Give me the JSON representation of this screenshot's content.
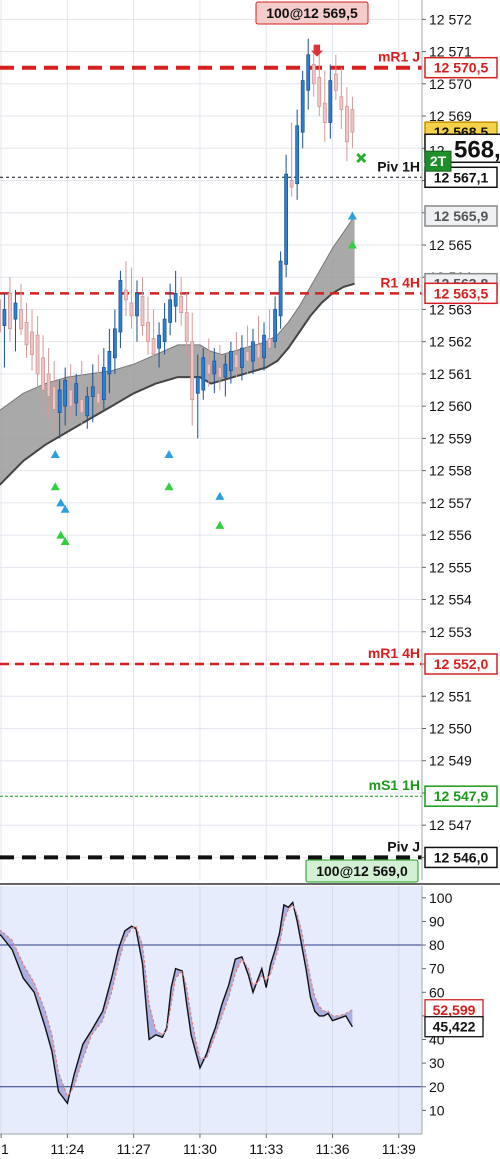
{
  "chart_data": [
    {
      "type": "candlestick",
      "title": "",
      "y_ticks": [
        "12 572",
        "12 571",
        "12 570",
        "12 569",
        "12 568",
        "12 567",
        "12 566",
        "12 565",
        "12 564",
        "12 563",
        "12 562",
        "12 561",
        "12 560",
        "12 559",
        "12 558",
        "12 557",
        "12 556",
        "12 555",
        "12 554",
        "12 553",
        "12 552",
        "12 551",
        "12 550",
        "12 549",
        "12 548",
        "12 547",
        "12 546"
      ],
      "y_tick_values": [
        12572,
        12571,
        12570,
        12569,
        12568,
        12567,
        12566,
        12565,
        12564,
        12563,
        12562,
        12561,
        12560,
        12559,
        12558,
        12557,
        12556,
        12555,
        12554,
        12553,
        12552,
        12551,
        12550,
        12549,
        12548,
        12547,
        12546
      ],
      "ylim": [
        12545.3,
        12572.6
      ],
      "x_ticks": [
        "1",
        "11:24",
        "11:27",
        "11:30",
        "11:33",
        "11:36",
        "11:39"
      ],
      "x_tick_values": [
        21,
        24,
        27,
        30,
        33,
        36,
        39
      ],
      "xlim": [
        20.95,
        40.05
      ],
      "current_price_label": "568,",
      "level_2t_label": "2T",
      "levels": [
        {
          "name": "mR1 J",
          "value": 12570.5,
          "label": "12 570,5",
          "color": "#d62020",
          "style": "thick-dash"
        },
        {
          "name": "",
          "value": 12568.5,
          "label": "12 568,5",
          "color": "#e8b020",
          "style": "none"
        },
        {
          "name": "Piv 1H",
          "value": 12567.1,
          "label": "12 567,1",
          "color": "#111111",
          "style": "dot"
        },
        {
          "name": "",
          "value": 12565.9,
          "label": "12 565,9",
          "color": "#888888",
          "style": "none"
        },
        {
          "name": "",
          "value": 12563.8,
          "label": "12 563,8",
          "color": "#888888",
          "style": "none"
        },
        {
          "name": "R1 4H",
          "value": 12563.5,
          "label": "12 563,5",
          "color": "#d62020",
          "style": "dash"
        },
        {
          "name": "mR1 4H",
          "value": 12552.0,
          "label": "12 552,0",
          "color": "#d62020",
          "style": "dash"
        },
        {
          "name": "mS1 1H",
          "value": 12547.9,
          "label": "12 547,9",
          "color": "#1a9a1a",
          "style": "dot-green"
        },
        {
          "name": "Piv J",
          "value": 12546.0,
          "label": "12 546,0",
          "color": "#111111",
          "style": "thick-dash-black"
        }
      ],
      "order_tags": [
        {
          "text": "100@12 569,5",
          "color": "#f4cccc",
          "border": "#d62020"
        },
        {
          "text": "100@12 569,0",
          "color": "#d4f0d4",
          "border": "#1a9a1a"
        }
      ],
      "candles": [
        {
          "t": 20.9,
          "o": 12563.3,
          "h": 12564.6,
          "l": 12561.8,
          "c": 12562.3
        },
        {
          "t": 21.15,
          "o": 12562.5,
          "h": 12563.5,
          "l": 12561.2,
          "c": 12563.0
        },
        {
          "t": 21.4,
          "o": 12563.5,
          "h": 12564.0,
          "l": 12562.0,
          "c": 12562.4
        },
        {
          "t": 21.65,
          "o": 12562.7,
          "h": 12563.6,
          "l": 12561.7,
          "c": 12563.2
        },
        {
          "t": 21.9,
          "o": 12563.0,
          "h": 12563.8,
          "l": 12562.2,
          "c": 12562.4
        },
        {
          "t": 22.15,
          "o": 12562.6,
          "h": 12563.2,
          "l": 12561.5,
          "c": 12561.9
        },
        {
          "t": 22.4,
          "o": 12562.3,
          "h": 12563.0,
          "l": 12561.1,
          "c": 12561.6
        },
        {
          "t": 22.65,
          "o": 12562.2,
          "h": 12562.8,
          "l": 12560.5,
          "c": 12561.0
        },
        {
          "t": 22.9,
          "o": 12561.5,
          "h": 12562.2,
          "l": 12559.8,
          "c": 12560.5
        },
        {
          "t": 23.15,
          "o": 12561.0,
          "h": 12561.8,
          "l": 12559.6,
          "c": 12560.3
        },
        {
          "t": 23.4,
          "o": 12560.6,
          "h": 12561.4,
          "l": 12559.2,
          "c": 12559.9
        },
        {
          "t": 23.65,
          "o": 12559.8,
          "h": 12560.8,
          "l": 12559.0,
          "c": 12560.5
        },
        {
          "t": 23.9,
          "o": 12560.0,
          "h": 12561.2,
          "l": 12559.4,
          "c": 12560.8
        },
        {
          "t": 24.15,
          "o": 12560.5,
          "h": 12561.3,
          "l": 12559.6,
          "c": 12560.0
        },
        {
          "t": 24.4,
          "o": 12560.1,
          "h": 12561.0,
          "l": 12559.7,
          "c": 12560.7
        },
        {
          "t": 24.65,
          "o": 12560.2,
          "h": 12561.4,
          "l": 12559.4,
          "c": 12559.8
        },
        {
          "t": 24.9,
          "o": 12559.7,
          "h": 12560.6,
          "l": 12559.3,
          "c": 12560.3
        },
        {
          "t": 25.15,
          "o": 12560.3,
          "h": 12561.3,
          "l": 12559.5,
          "c": 12560.6
        },
        {
          "t": 25.4,
          "o": 12560.4,
          "h": 12561.6,
          "l": 12559.8,
          "c": 12560.1
        },
        {
          "t": 25.65,
          "o": 12560.2,
          "h": 12561.8,
          "l": 12559.9,
          "c": 12561.2
        },
        {
          "t": 25.9,
          "o": 12561.0,
          "h": 12562.4,
          "l": 12560.4,
          "c": 12561.7
        },
        {
          "t": 26.15,
          "o": 12561.5,
          "h": 12563.0,
          "l": 12561.0,
          "c": 12562.4
        },
        {
          "t": 26.4,
          "o": 12562.3,
          "h": 12564.2,
          "l": 12561.8,
          "c": 12563.9
        },
        {
          "t": 26.65,
          "o": 12563.6,
          "h": 12564.5,
          "l": 12562.8,
          "c": 12563.3
        },
        {
          "t": 26.9,
          "o": 12563.2,
          "h": 12564.3,
          "l": 12562.4,
          "c": 12562.8
        },
        {
          "t": 27.15,
          "o": 12562.8,
          "h": 12563.9,
          "l": 12562.0,
          "c": 12563.5
        },
        {
          "t": 27.4,
          "o": 12563.4,
          "h": 12564.0,
          "l": 12562.2,
          "c": 12562.5
        },
        {
          "t": 27.65,
          "o": 12562.6,
          "h": 12563.4,
          "l": 12561.6,
          "c": 12562.0
        },
        {
          "t": 27.9,
          "o": 12562.1,
          "h": 12563.0,
          "l": 12561.0,
          "c": 12561.6
        },
        {
          "t": 28.15,
          "o": 12561.8,
          "h": 12562.6,
          "l": 12561.2,
          "c": 12562.2
        },
        {
          "t": 28.4,
          "o": 12562.0,
          "h": 12563.2,
          "l": 12561.6,
          "c": 12562.7
        },
        {
          "t": 28.65,
          "o": 12562.6,
          "h": 12563.8,
          "l": 12562.2,
          "c": 12563.3
        },
        {
          "t": 28.9,
          "o": 12563.1,
          "h": 12564.2,
          "l": 12562.6,
          "c": 12563.5
        },
        {
          "t": 29.15,
          "o": 12563.4,
          "h": 12564.0,
          "l": 12562.5,
          "c": 12562.9
        },
        {
          "t": 29.4,
          "o": 12562.9,
          "h": 12563.5,
          "l": 12561.6,
          "c": 12562.0
        },
        {
          "t": 29.65,
          "o": 12562.0,
          "h": 12562.9,
          "l": 12559.4,
          "c": 12560.2
        },
        {
          "t": 29.9,
          "o": 12560.4,
          "h": 12561.6,
          "l": 12559.0,
          "c": 12560.9
        },
        {
          "t": 30.15,
          "o": 12560.5,
          "h": 12561.8,
          "l": 12560.2,
          "c": 12561.5
        },
        {
          "t": 30.4,
          "o": 12561.3,
          "h": 12562.1,
          "l": 12560.6,
          "c": 12561.0
        },
        {
          "t": 30.65,
          "o": 12561.0,
          "h": 12561.8,
          "l": 12560.4,
          "c": 12561.4
        },
        {
          "t": 30.9,
          "o": 12561.2,
          "h": 12561.9,
          "l": 12560.5,
          "c": 12560.9
        },
        {
          "t": 31.15,
          "o": 12560.9,
          "h": 12561.6,
          "l": 12560.3,
          "c": 12561.3
        },
        {
          "t": 31.4,
          "o": 12561.1,
          "h": 12562.0,
          "l": 12560.7,
          "c": 12561.7
        },
        {
          "t": 31.65,
          "o": 12561.6,
          "h": 12562.3,
          "l": 12560.9,
          "c": 12561.2
        },
        {
          "t": 31.9,
          "o": 12561.2,
          "h": 12562.2,
          "l": 12560.8,
          "c": 12561.8
        },
        {
          "t": 32.15,
          "o": 12561.7,
          "h": 12562.5,
          "l": 12561.0,
          "c": 12561.4
        },
        {
          "t": 32.4,
          "o": 12561.4,
          "h": 12562.4,
          "l": 12561.0,
          "c": 12562.0
        },
        {
          "t": 32.65,
          "o": 12561.9,
          "h": 12562.8,
          "l": 12561.2,
          "c": 12561.5
        },
        {
          "t": 32.9,
          "o": 12561.5,
          "h": 12562.6,
          "l": 12561.1,
          "c": 12562.2
        },
        {
          "t": 33.15,
          "o": 12562.1,
          "h": 12563.0,
          "l": 12561.4,
          "c": 12561.8
        },
        {
          "t": 33.4,
          "o": 12562.0,
          "h": 12563.4,
          "l": 12561.8,
          "c": 12563.0
        },
        {
          "t": 33.65,
          "o": 12562.8,
          "h": 12564.8,
          "l": 12562.4,
          "c": 12564.5
        },
        {
          "t": 33.9,
          "o": 12564.4,
          "h": 12567.8,
          "l": 12564.0,
          "c": 12567.2
        },
        {
          "t": 34.15,
          "o": 12567.0,
          "h": 12568.8,
          "l": 12566.5,
          "c": 12566.8
        },
        {
          "t": 34.4,
          "o": 12566.9,
          "h": 12569.2,
          "l": 12566.4,
          "c": 12568.7
        },
        {
          "t": 34.65,
          "o": 12568.5,
          "h": 12570.4,
          "l": 12568.0,
          "c": 12570.1
        },
        {
          "t": 34.9,
          "o": 12569.8,
          "h": 12571.4,
          "l": 12569.2,
          "c": 12570.9
        },
        {
          "t": 35.15,
          "o": 12570.6,
          "h": 12571.2,
          "l": 12569.6,
          "c": 12570.0
        },
        {
          "t": 35.4,
          "o": 12570.2,
          "h": 12571.0,
          "l": 12569.0,
          "c": 12569.3
        },
        {
          "t": 35.65,
          "o": 12569.4,
          "h": 12570.4,
          "l": 12568.2,
          "c": 12568.8
        },
        {
          "t": 35.9,
          "o": 12568.8,
          "h": 12570.6,
          "l": 12568.3,
          "c": 12570.1
        },
        {
          "t": 36.15,
          "o": 12570.3,
          "h": 12570.9,
          "l": 12569.5,
          "c": 12569.8
        },
        {
          "t": 36.4,
          "o": 12569.6,
          "h": 12570.5,
          "l": 12568.6,
          "c": 12569.2
        },
        {
          "t": 36.65,
          "o": 12569.3,
          "h": 12569.9,
          "l": 12567.6,
          "c": 12568.2
        },
        {
          "t": 36.9,
          "o": 12569.2,
          "h": 12569.6,
          "l": 12568.0,
          "c": 12568.5
        }
      ],
      "band": {
        "t": [
          20.0,
          21.0,
          22.0,
          23.0,
          24.0,
          25.0,
          26.0,
          27.0,
          28.0,
          29.0,
          30.0,
          30.5,
          31.0,
          32.0,
          33.0,
          33.5,
          34.0,
          34.5,
          35.0,
          35.5,
          36.0,
          36.5,
          37.0
        ],
        "upper": [
          12559.5,
          12559.9,
          12560.4,
          12560.7,
          12560.9,
          12561.0,
          12561.1,
          12561.3,
          12561.6,
          12561.9,
          12561.9,
          12561.7,
          12561.6,
          12561.8,
          12562.0,
          12562.2,
          12562.6,
          12563.1,
          12563.7,
          12564.3,
          12564.9,
          12565.4,
          12565.9
        ],
        "lower": [
          12557.0,
          12557.6,
          12558.3,
          12558.8,
          12559.2,
          12559.6,
          12560.0,
          12560.4,
          12560.7,
          12560.9,
          12560.9,
          12560.7,
          12560.8,
          12561.0,
          12561.2,
          12561.4,
          12561.8,
          12562.3,
          12562.8,
          12563.2,
          12563.5,
          12563.7,
          12563.8
        ]
      },
      "triangles": [
        {
          "t": 23.45,
          "v": 12558.5,
          "color": "#2aa0e0"
        },
        {
          "t": 23.45,
          "v": 12557.5,
          "color": "#30d040"
        },
        {
          "t": 23.7,
          "v": 12557.0,
          "color": "#2aa0e0"
        },
        {
          "t": 23.9,
          "v": 12556.8,
          "color": "#2aa0e0"
        },
        {
          "t": 23.7,
          "v": 12556.0,
          "color": "#30d040"
        },
        {
          "t": 23.9,
          "v": 12555.8,
          "color": "#30d040"
        },
        {
          "t": 28.6,
          "v": 12558.5,
          "color": "#2aa0e0"
        },
        {
          "t": 28.6,
          "v": 12557.5,
          "color": "#30d040"
        },
        {
          "t": 30.9,
          "v": 12557.2,
          "color": "#2aa0e0"
        },
        {
          "t": 30.9,
          "v": 12556.3,
          "color": "#30d040"
        },
        {
          "t": 36.9,
          "v": 12565.9,
          "color": "#2aa0e0"
        },
        {
          "t": 36.9,
          "v": 12565.0,
          "color": "#30d040"
        }
      ]
    },
    {
      "type": "line",
      "title": "",
      "y_ticks": [
        "100",
        "90",
        "80",
        "70",
        "60",
        "50",
        "40",
        "30",
        "20",
        "10"
      ],
      "y_tick_values": [
        100,
        90,
        80,
        70,
        60,
        50,
        40,
        30,
        20,
        10
      ],
      "ylim": [
        0,
        105
      ],
      "hlines": [
        80,
        20
      ],
      "value_labels": [
        {
          "text": "52,599",
          "color": "#d62020",
          "v": 52.599
        },
        {
          "text": "45,422",
          "color": "#111111",
          "v": 45.422
        }
      ],
      "x": [
        20.0,
        21.0,
        21.5,
        22.0,
        22.5,
        23.0,
        23.3,
        23.6,
        24.0,
        24.3,
        24.7,
        25.1,
        25.6,
        26.0,
        26.3,
        26.6,
        26.9,
        27.1,
        27.4,
        27.7,
        28.0,
        28.3,
        28.5,
        28.7,
        28.9,
        29.2,
        29.4,
        29.6,
        29.8,
        30.0,
        30.3,
        30.5,
        30.7,
        31.0,
        31.3,
        31.6,
        31.9,
        32.2,
        32.4,
        32.6,
        32.8,
        33.0,
        33.2,
        33.4,
        33.6,
        33.8,
        34.0,
        34.2,
        34.4,
        34.6,
        34.8,
        35.0,
        35.2,
        35.4,
        35.6,
        35.8,
        36.0,
        36.3,
        36.6,
        36.9
      ],
      "series": [
        {
          "name": "",
          "color": "#111111",
          "values": [
            90,
            84,
            78,
            66,
            60,
            45,
            35,
            18,
            13,
            25,
            38,
            44,
            52,
            66,
            78,
            86,
            88,
            87,
            72,
            40,
            42,
            41,
            45,
            62,
            70,
            69,
            55,
            42,
            35,
            28,
            34,
            40,
            45,
            55,
            63,
            74,
            75,
            67,
            60,
            65,
            70,
            62,
            72,
            78,
            85,
            97,
            96,
            98,
            90,
            80,
            70,
            58,
            52,
            50,
            50,
            51,
            48,
            49,
            50,
            45.4
          ]
        },
        {
          "name": "",
          "color": "#e08080",
          "values": [
            88,
            86,
            82,
            72,
            64,
            52,
            42,
            26,
            16,
            20,
            32,
            42,
            48,
            60,
            72,
            82,
            87,
            88,
            80,
            55,
            44,
            42,
            44,
            55,
            66,
            69,
            62,
            50,
            40,
            32,
            32,
            37,
            42,
            50,
            58,
            68,
            74,
            70,
            63,
            64,
            67,
            65,
            68,
            74,
            80,
            90,
            95,
            97,
            93,
            86,
            76,
            66,
            58,
            54,
            52,
            52,
            50,
            50,
            51,
            52.6
          ]
        }
      ]
    }
  ]
}
